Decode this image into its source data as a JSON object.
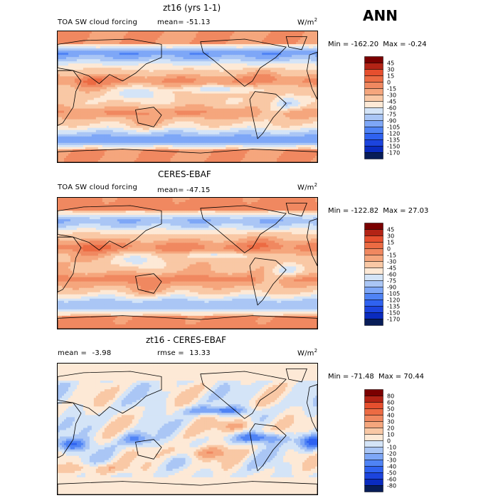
{
  "season": "ANN",
  "colors": {
    "forcing": [
      "#081d58",
      "#0a2bbf",
      "#1c44de",
      "#2f62f0",
      "#4f83f5",
      "#7ea7f7",
      "#aac6f5",
      "#d4e4f7",
      "#fde9d6",
      "#f9c8a5",
      "#f5a67d",
      "#f08860",
      "#ec6b43",
      "#e64f2e",
      "#b32315",
      "#7a0000"
    ],
    "diff": [
      "#081d58",
      "#0a2bbf",
      "#1c44de",
      "#2f62f0",
      "#4f83f5",
      "#7ea7f7",
      "#aac6f5",
      "#d4e4f7",
      "#fde9d6",
      "#f9c8a5",
      "#f5a67d",
      "#f08860",
      "#ec6b43",
      "#e64f2e",
      "#b32315",
      "#7a0000"
    ]
  },
  "chart_data": [
    {
      "type": "heatmap",
      "title": "zt16 (yrs 1-1)",
      "variable": "TOA SW cloud forcing",
      "stat_label": "mean=",
      "stat_value": "-51.13",
      "unit": "W/m",
      "unit_sup": "2",
      "min_label": "Min =",
      "min_value": "-162.20",
      "max_label": "Max =",
      "max_value": "-0.24",
      "levels": [
        "45",
        "30",
        "15",
        "0",
        "-15",
        "-30",
        "-45",
        "-60",
        "-75",
        "-90",
        "-105",
        "-120",
        "-135",
        "-150",
        "-170"
      ]
    },
    {
      "type": "heatmap",
      "title": "CERES-EBAF",
      "variable": "TOA SW cloud forcing",
      "stat_label": "mean=",
      "stat_value": "-47.15",
      "unit": "W/m",
      "unit_sup": "2",
      "min_label": "Min =",
      "min_value": "-122.82",
      "max_label": "Max =",
      "max_value": "27.03",
      "levels": [
        "45",
        "30",
        "15",
        "0",
        "-15",
        "-30",
        "-45",
        "-60",
        "-75",
        "-90",
        "-105",
        "-120",
        "-135",
        "-150",
        "-170"
      ]
    },
    {
      "type": "heatmap",
      "title": "zt16 - CERES-EBAF",
      "variable": "",
      "stat_label": "mean =",
      "stat_value": "-3.98",
      "stat2_label": "rmse =",
      "stat2_value": "13.33",
      "unit": "W/m",
      "unit_sup": "2",
      "min_label": "Min =",
      "min_value": "-71.48",
      "max_label": "Max =",
      "max_value": "70.44",
      "levels": [
        "80",
        "60",
        "50",
        "40",
        "30",
        "20",
        "10",
        "0",
        "-10",
        "-20",
        "-30",
        "-40",
        "-50",
        "-60",
        "-80"
      ]
    }
  ]
}
